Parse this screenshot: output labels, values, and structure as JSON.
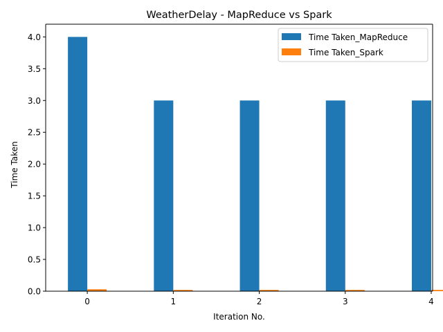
{
  "chart_data": {
    "type": "bar",
    "title": "WeatherDelay - MapReduce vs Spark",
    "xlabel": "Iteration No.",
    "ylabel": "Time Taken",
    "categories": [
      "0",
      "1",
      "2",
      "3",
      "4"
    ],
    "series": [
      {
        "name": "Time Taken_MapReduce",
        "color": "#1f77b4",
        "values": [
          4.0,
          3.0,
          3.0,
          3.0,
          3.0
        ]
      },
      {
        "name": "Time Taken_Spark",
        "color": "#ff7f0e",
        "values": [
          0.03,
          0.02,
          0.02,
          0.02,
          0.02
        ]
      }
    ],
    "ylim": [
      0,
      4.2
    ],
    "yticks": [
      "0.0",
      "0.5",
      "1.0",
      "1.5",
      "2.0",
      "2.5",
      "3.0",
      "3.5",
      "4.0"
    ],
    "grid": false,
    "legend_position": "top-right"
  }
}
